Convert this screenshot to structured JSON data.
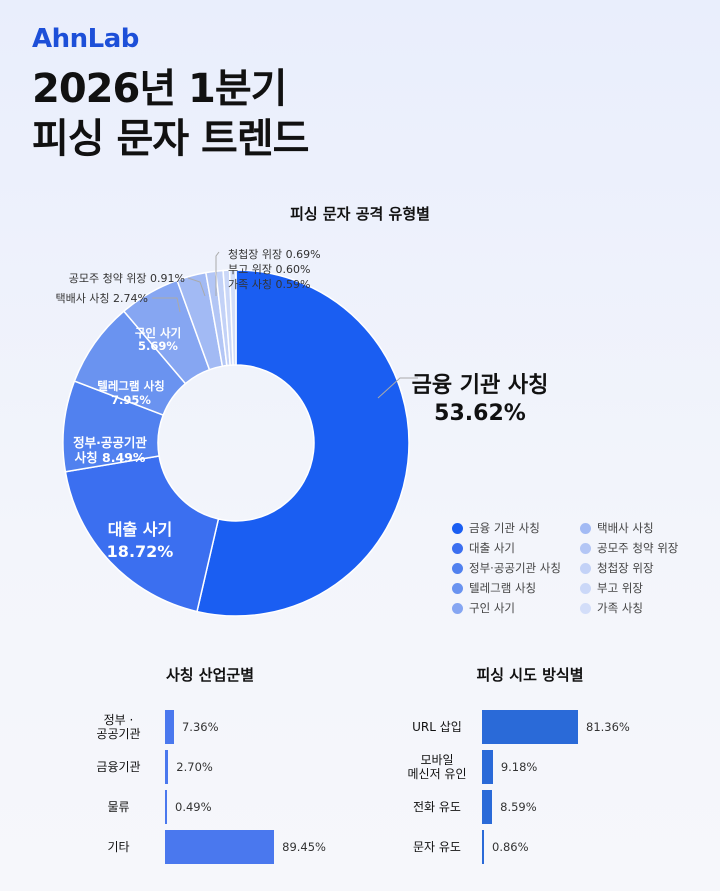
{
  "logo": "AhnLab",
  "title_line1": "2026년 1분기",
  "title_line2": "피싱 문자 트렌드",
  "chart_data": [
    {
      "type": "pie",
      "title": "피싱 문자 공격 유형별",
      "legend": "bottom-right",
      "slices": [
        {
          "label": "금융 기관 사칭",
          "value": 53.62,
          "display": "53.62%",
          "color": "#1a5ef2"
        },
        {
          "label": "대출 사기",
          "value": 18.72,
          "display": "18.72%",
          "color": "#3b6ff0"
        },
        {
          "label": "정부·공공기관 사칭",
          "value": 8.49,
          "display": "8.49%",
          "color": "#5181ef",
          "chart_label": [
            "정부·공공기관",
            "사칭 8.49%"
          ]
        },
        {
          "label": "텔레그램 사칭",
          "value": 7.95,
          "display": "7.95%",
          "color": "#6a93f0"
        },
        {
          "label": "구인 사기",
          "value": 5.69,
          "display": "5.69%",
          "color": "#86a6f2"
        },
        {
          "label": "택배사 사칭",
          "value": 2.74,
          "display": "2.74%",
          "color": "#a2baf4"
        },
        {
          "label": "공모주 청약 위장",
          "value": 0.91,
          "display": "0.91%",
          "color": "#b3c6f5"
        },
        {
          "label": "청첩장 위장",
          "value": 0.69,
          "display": "0.69%",
          "color": "#c3d2f7"
        },
        {
          "label": "부고 위장",
          "value": 0.6,
          "display": "0.60%",
          "color": "#cbd8f8"
        },
        {
          "label": "가족 사칭",
          "value": 0.59,
          "display": "0.59%",
          "color": "#d3def9"
        }
      ]
    },
    {
      "type": "bar",
      "title": "사칭 산업군별",
      "categories": [
        "정부·공공기관",
        "금융기관",
        "물류",
        "기타"
      ],
      "values": [
        7.36,
        2.7,
        0.49,
        89.45
      ],
      "labels": [
        "7.36%",
        "2.70%",
        "0.49%",
        "89.45%"
      ],
      "color": "#4a78ee"
    },
    {
      "type": "bar",
      "title": "피싱 시도 방식별",
      "categories": [
        "URL 삽입",
        "모바일 메신저 유인",
        "전화 유도",
        "문자 유도"
      ],
      "values": [
        81.36,
        9.18,
        8.59,
        0.86
      ],
      "labels": [
        "81.36%",
        "9.18%",
        "8.59%",
        "0.86%"
      ],
      "color": "#2a6ad8"
    }
  ]
}
